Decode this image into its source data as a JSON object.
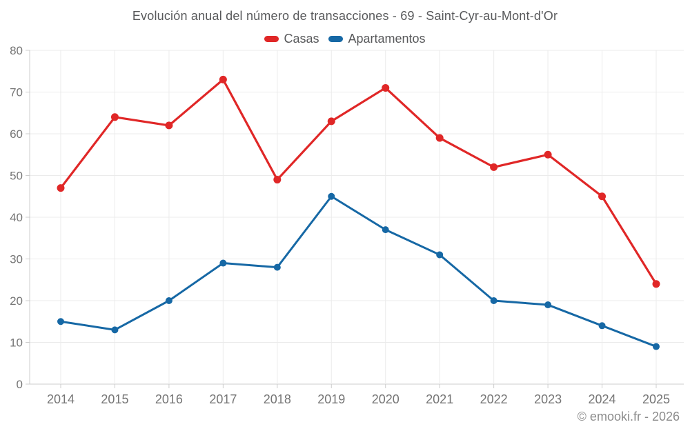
{
  "chart_data": {
    "type": "line",
    "title": "Evolución anual del número de transacciones - 69 - Saint-Cyr-au-Mont-d'Or",
    "categories": [
      "2014",
      "2015",
      "2016",
      "2017",
      "2018",
      "2019",
      "2020",
      "2021",
      "2022",
      "2023",
      "2024",
      "2025"
    ],
    "series": [
      {
        "id": "casas",
        "name": "Casas",
        "color": "#e02727",
        "values": [
          47,
          64,
          62,
          73,
          49,
          63,
          71,
          59,
          52,
          55,
          45,
          24
        ]
      },
      {
        "id": "apartamentos",
        "name": "Apartamentos",
        "color": "#1668a5",
        "values": [
          15,
          13,
          20,
          29,
          28,
          45,
          37,
          31,
          20,
          19,
          14,
          9
        ]
      }
    ],
    "xlabel": "",
    "ylabel": "",
    "ylim": [
      0,
      80
    ],
    "yticks": [
      0,
      10,
      20,
      30,
      40,
      50,
      60,
      70,
      80
    ],
    "grid": true,
    "legend_position": "top"
  },
  "footer": {
    "text": "© emooki.fr - 2026"
  }
}
